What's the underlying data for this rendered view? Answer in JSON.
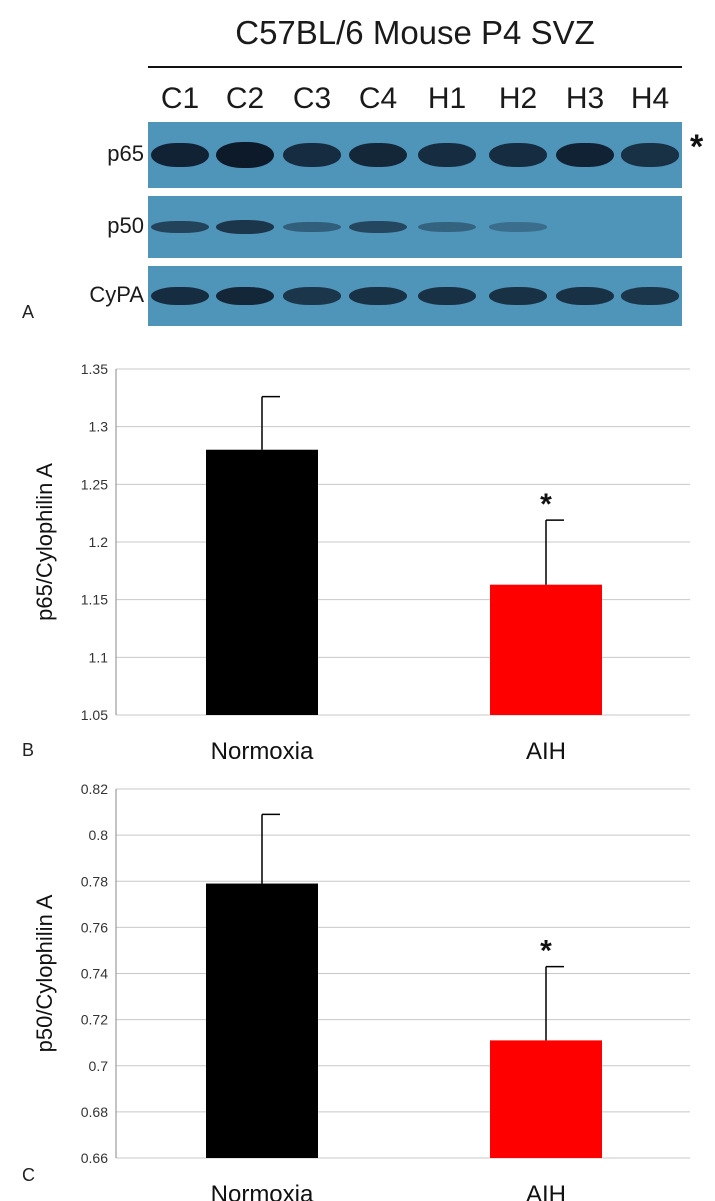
{
  "blot": {
    "title": "C57BL/6 Mouse P4 SVZ",
    "lanes": [
      "C1",
      "C2",
      "C3",
      "C4",
      "H1",
      "H2",
      "H3",
      "H4"
    ],
    "rows": [
      {
        "label": "p65",
        "intensity": [
          0.9,
          1.0,
          0.8,
          0.85,
          0.8,
          0.8,
          0.9,
          0.75
        ]
      },
      {
        "label": "p50",
        "intensity": [
          0.55,
          0.7,
          0.25,
          0.5,
          0.2,
          0.08,
          0.0,
          0.0
        ]
      },
      {
        "label": "CyPA",
        "intensity": [
          0.8,
          0.85,
          0.7,
          0.75,
          0.75,
          0.75,
          0.75,
          0.7
        ]
      }
    ],
    "marker": "*"
  },
  "panels": {
    "a": "A",
    "b": "B",
    "c": "C"
  },
  "colors": {
    "blot_bg": "#4f94b9",
    "band": "#0c1a2a",
    "normoxia": "#000000",
    "aih": "#ff0000"
  },
  "chart_data": [
    {
      "type": "bar",
      "categories": [
        "Normoxia",
        "AIH"
      ],
      "values": [
        1.28,
        1.163
      ],
      "errors": [
        0.046,
        0.056
      ],
      "annotations": [
        "",
        "*"
      ],
      "title": "",
      "xlabel": "",
      "ylabel": "p65/Cylophilin A",
      "ylim": [
        1.05,
        1.35
      ],
      "yticks": [
        1.05,
        1.1,
        1.15,
        1.2,
        1.25,
        1.3,
        1.35
      ],
      "ytick_labels": [
        "1.05",
        "1.1",
        "1.15",
        "1.2",
        "1.25",
        "1.3",
        "1.35"
      ],
      "grid": true,
      "colors": [
        "#000000",
        "#ff0000"
      ]
    },
    {
      "type": "bar",
      "categories": [
        "Normoxia",
        "AIH"
      ],
      "values": [
        0.779,
        0.711
      ],
      "errors": [
        0.03,
        0.032
      ],
      "annotations": [
        "",
        "*"
      ],
      "title": "",
      "xlabel": "",
      "ylabel": "p50/Cylophilin A",
      "ylim": [
        0.66,
        0.82
      ],
      "yticks": [
        0.66,
        0.68,
        0.7,
        0.72,
        0.74,
        0.76,
        0.78,
        0.8,
        0.82
      ],
      "ytick_labels": [
        "0.66",
        "0.68",
        "0.7",
        "0.72",
        "0.74",
        "0.76",
        "0.78",
        "0.8",
        "0.82"
      ],
      "grid": true,
      "colors": [
        "#000000",
        "#ff0000"
      ]
    }
  ]
}
